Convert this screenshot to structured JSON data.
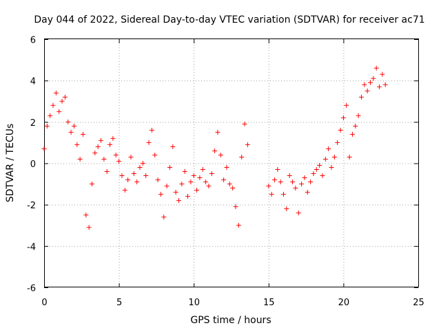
{
  "chart_data": {
    "type": "scatter",
    "title": "Day 044 of 2022, Sidereal Day-to-day VTEC variation (SDTVAR) for receiver ac71",
    "xlabel": "GPS time / hours",
    "ylabel": "SDTVAR / TECUs",
    "xlim": [
      0,
      25
    ],
    "ylim": [
      -6,
      6
    ],
    "xticks": [
      0,
      5,
      10,
      15,
      20,
      25
    ],
    "yticks": [
      -6,
      -4,
      -2,
      0,
      2,
      4,
      6
    ],
    "grid": true,
    "marker": "+",
    "color": "#ff0000",
    "series": [
      {
        "name": "SDTVAR",
        "x": [
          0.0,
          0.2,
          0.4,
          0.6,
          0.8,
          1.0,
          1.2,
          1.4,
          1.6,
          1.8,
          2.0,
          2.2,
          2.4,
          2.6,
          2.8,
          3.0,
          3.2,
          3.4,
          3.6,
          3.8,
          4.0,
          4.2,
          4.4,
          4.6,
          4.8,
          5.0,
          5.2,
          5.4,
          5.6,
          5.8,
          6.0,
          6.2,
          6.4,
          6.6,
          6.8,
          7.0,
          7.2,
          7.4,
          7.6,
          7.8,
          8.0,
          8.2,
          8.4,
          8.6,
          8.8,
          9.0,
          9.2,
          9.4,
          9.6,
          9.8,
          10.0,
          10.2,
          10.4,
          10.6,
          10.8,
          11.0,
          11.2,
          11.4,
          11.6,
          11.8,
          12.0,
          12.2,
          12.4,
          12.6,
          12.8,
          13.0,
          13.2,
          13.4,
          13.6,
          15.0,
          15.2,
          15.4,
          15.6,
          15.8,
          16.0,
          16.2,
          16.4,
          16.6,
          16.8,
          17.0,
          17.2,
          17.4,
          17.6,
          17.8,
          18.0,
          18.2,
          18.4,
          18.6,
          18.8,
          19.0,
          19.2,
          19.4,
          19.6,
          19.8,
          20.0,
          20.2,
          20.4,
          20.6,
          20.8,
          21.0,
          21.2,
          21.4,
          21.6,
          21.8,
          22.0,
          22.2,
          22.4,
          22.6,
          22.8
        ],
        "y": [
          0.7,
          1.8,
          2.3,
          2.8,
          3.4,
          2.5,
          3.0,
          3.2,
          2.0,
          1.5,
          1.8,
          0.9,
          0.2,
          1.4,
          -2.5,
          -3.1,
          -1.0,
          0.5,
          0.8,
          1.1,
          0.2,
          -0.4,
          0.9,
          1.2,
          0.4,
          0.1,
          -0.6,
          -1.3,
          -0.8,
          0.3,
          -0.5,
          -0.9,
          -0.2,
          0.0,
          -0.6,
          1.0,
          1.6,
          0.4,
          -0.8,
          -1.5,
          -2.6,
          -1.1,
          -0.2,
          0.8,
          -1.4,
          -1.8,
          -1.0,
          -0.4,
          -1.6,
          -0.9,
          -0.6,
          -1.3,
          -0.7,
          -0.3,
          -0.9,
          -1.1,
          -0.5,
          0.6,
          1.5,
          0.4,
          -0.8,
          -0.2,
          -1.0,
          -1.2,
          -2.1,
          -3.0,
          0.3,
          1.9,
          0.9,
          -1.1,
          -1.5,
          -0.8,
          -0.3,
          -0.9,
          -1.5,
          -2.2,
          -0.6,
          -0.9,
          -1.2,
          -2.4,
          -1.0,
          -0.7,
          -1.4,
          -0.9,
          -0.5,
          -0.3,
          -0.1,
          -0.6,
          0.2,
          0.7,
          -0.2,
          0.3,
          1.0,
          1.6,
          2.2,
          2.8,
          0.3,
          1.4,
          1.8,
          2.3,
          3.2,
          3.8,
          3.5,
          3.9,
          4.1,
          4.6,
          3.7,
          4.3,
          3.8
        ]
      }
    ]
  }
}
